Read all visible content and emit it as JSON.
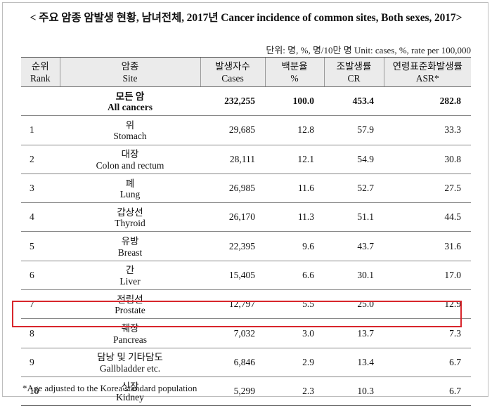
{
  "title": "< 주요 암종 암발생 현황, 남녀전체, 2017년 Cancer incidence of common sites, Both sexes, 2017>",
  "unit": "단위: 명, %, 명/10만 명   Unit: cases, %, rate per 100,000",
  "headers": [
    {
      "ko": "순위",
      "en": "Rank"
    },
    {
      "ko": "암종",
      "en": "Site"
    },
    {
      "ko": "발생자수",
      "en": "Cases"
    },
    {
      "ko": "백분율",
      "en": "%"
    },
    {
      "ko": "조발생률",
      "en": "CR"
    },
    {
      "ko": "연령표준화발생률",
      "en": "ASR*"
    }
  ],
  "all_cancers": {
    "site_ko": "모든 암",
    "site_en": "All cancers",
    "cases": "232,255",
    "pct": "100.0",
    "cr": "453.4",
    "asr": "282.8"
  },
  "rows": [
    {
      "rank": "1",
      "site_ko": "위",
      "site_en": "Stomach",
      "cases": "29,685",
      "pct": "12.8",
      "cr": "57.9",
      "asr": "33.3"
    },
    {
      "rank": "2",
      "site_ko": "대장",
      "site_en": "Colon and rectum",
      "cases": "28,111",
      "pct": "12.1",
      "cr": "54.9",
      "asr": "30.8"
    },
    {
      "rank": "3",
      "site_ko": "폐",
      "site_en": "Lung",
      "cases": "26,985",
      "pct": "11.6",
      "cr": "52.7",
      "asr": "27.5"
    },
    {
      "rank": "4",
      "site_ko": "갑상선",
      "site_en": "Thyroid",
      "cases": "26,170",
      "pct": "11.3",
      "cr": "51.1",
      "asr": "44.5"
    },
    {
      "rank": "5",
      "site_ko": "유방",
      "site_en": "Breast",
      "cases": "22,395",
      "pct": "9.6",
      "cr": "43.7",
      "asr": "31.6"
    },
    {
      "rank": "6",
      "site_ko": "간",
      "site_en": "Liver",
      "cases": "15,405",
      "pct": "6.6",
      "cr": "30.1",
      "asr": "17.0"
    },
    {
      "rank": "7",
      "site_ko": "전립선",
      "site_en": "Prostate",
      "cases": "12,797",
      "pct": "5.5",
      "cr": "25.0",
      "asr": "12.9"
    },
    {
      "rank": "8",
      "site_ko": "췌장",
      "site_en": "Pancreas",
      "cases": "7,032",
      "pct": "3.0",
      "cr": "13.7",
      "asr": "7.3"
    },
    {
      "rank": "9",
      "site_ko": "담낭 및 기타담도",
      "site_en": "Gallbladder etc.",
      "cases": "6,846",
      "pct": "2.9",
      "cr": "13.4",
      "asr": "6.7"
    },
    {
      "rank": "10",
      "site_ko": "신장",
      "site_en": "Kidney",
      "cases": "5,299",
      "pct": "2.3",
      "cr": "10.3",
      "asr": "6.7"
    }
  ],
  "highlight_color": "#d8262c",
  "note": "*Age adjusted to the Korea standard population"
}
